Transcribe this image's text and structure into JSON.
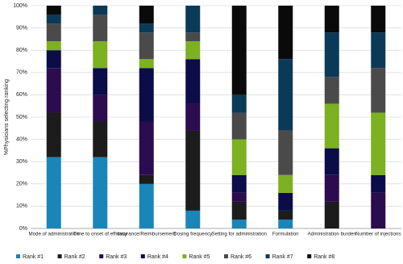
{
  "chart_data": {
    "type": "stacked-bar",
    "y_label": "%Physicians selecting ranking",
    "categories": [
      "Mode of administration",
      "Time to onset of efficacy",
      "Insurance/Reimbursement",
      "Dosing frequency",
      "Setting for administration",
      "Formulation",
      "Administration burden",
      "Number of injections"
    ],
    "series": [
      {
        "name": "Rank #1",
        "color": "#1a86b8",
        "values": [
          32,
          32,
          20,
          8,
          4,
          4,
          0,
          0
        ]
      },
      {
        "name": "Rank #2",
        "color": "#1c1c1c",
        "values": [
          20,
          16,
          4,
          36,
          8,
          4,
          12,
          0
        ]
      },
      {
        "name": "Rank #3",
        "color": "#2b0c4e",
        "values": [
          20,
          12,
          24,
          12,
          4,
          0,
          12,
          16
        ]
      },
      {
        "name": "Rank #4",
        "color": "#0c0c48",
        "values": [
          8,
          12,
          24,
          20,
          8,
          8,
          12,
          8
        ]
      },
      {
        "name": "Rank #5",
        "color": "#7cb121",
        "values": [
          4,
          12,
          4,
          8,
          16,
          8,
          20,
          28
        ]
      },
      {
        "name": "Rank #6",
        "color": "#4a4a4a",
        "values": [
          8,
          12,
          12,
          4,
          12,
          20,
          12,
          20
        ]
      },
      {
        "name": "Rank #7",
        "color": "#0b3a58",
        "values": [
          4,
          4,
          4,
          12,
          8,
          32,
          20,
          16
        ]
      },
      {
        "name": "Rank #8",
        "color": "#0a0a0a",
        "values": [
          4,
          0,
          8,
          0,
          40,
          24,
          12,
          12
        ]
      }
    ],
    "ylim": [
      0,
      100
    ],
    "yticks": [
      {
        "value": 0,
        "label": "0%"
      },
      {
        "value": 10,
        "label": "10%"
      },
      {
        "value": 20,
        "label": "20%"
      },
      {
        "value": 30,
        "label": "30%"
      },
      {
        "value": 40,
        "label": "40%"
      },
      {
        "value": 50,
        "label": "50%"
      },
      {
        "value": 60,
        "label": "60%"
      },
      {
        "value": 70,
        "label": "70%"
      },
      {
        "value": 80,
        "label": "80%"
      },
      {
        "value": 90,
        "label": "90%"
      },
      {
        "value": 100,
        "label": "100%"
      }
    ],
    "grid": true,
    "legend": "bottom"
  }
}
